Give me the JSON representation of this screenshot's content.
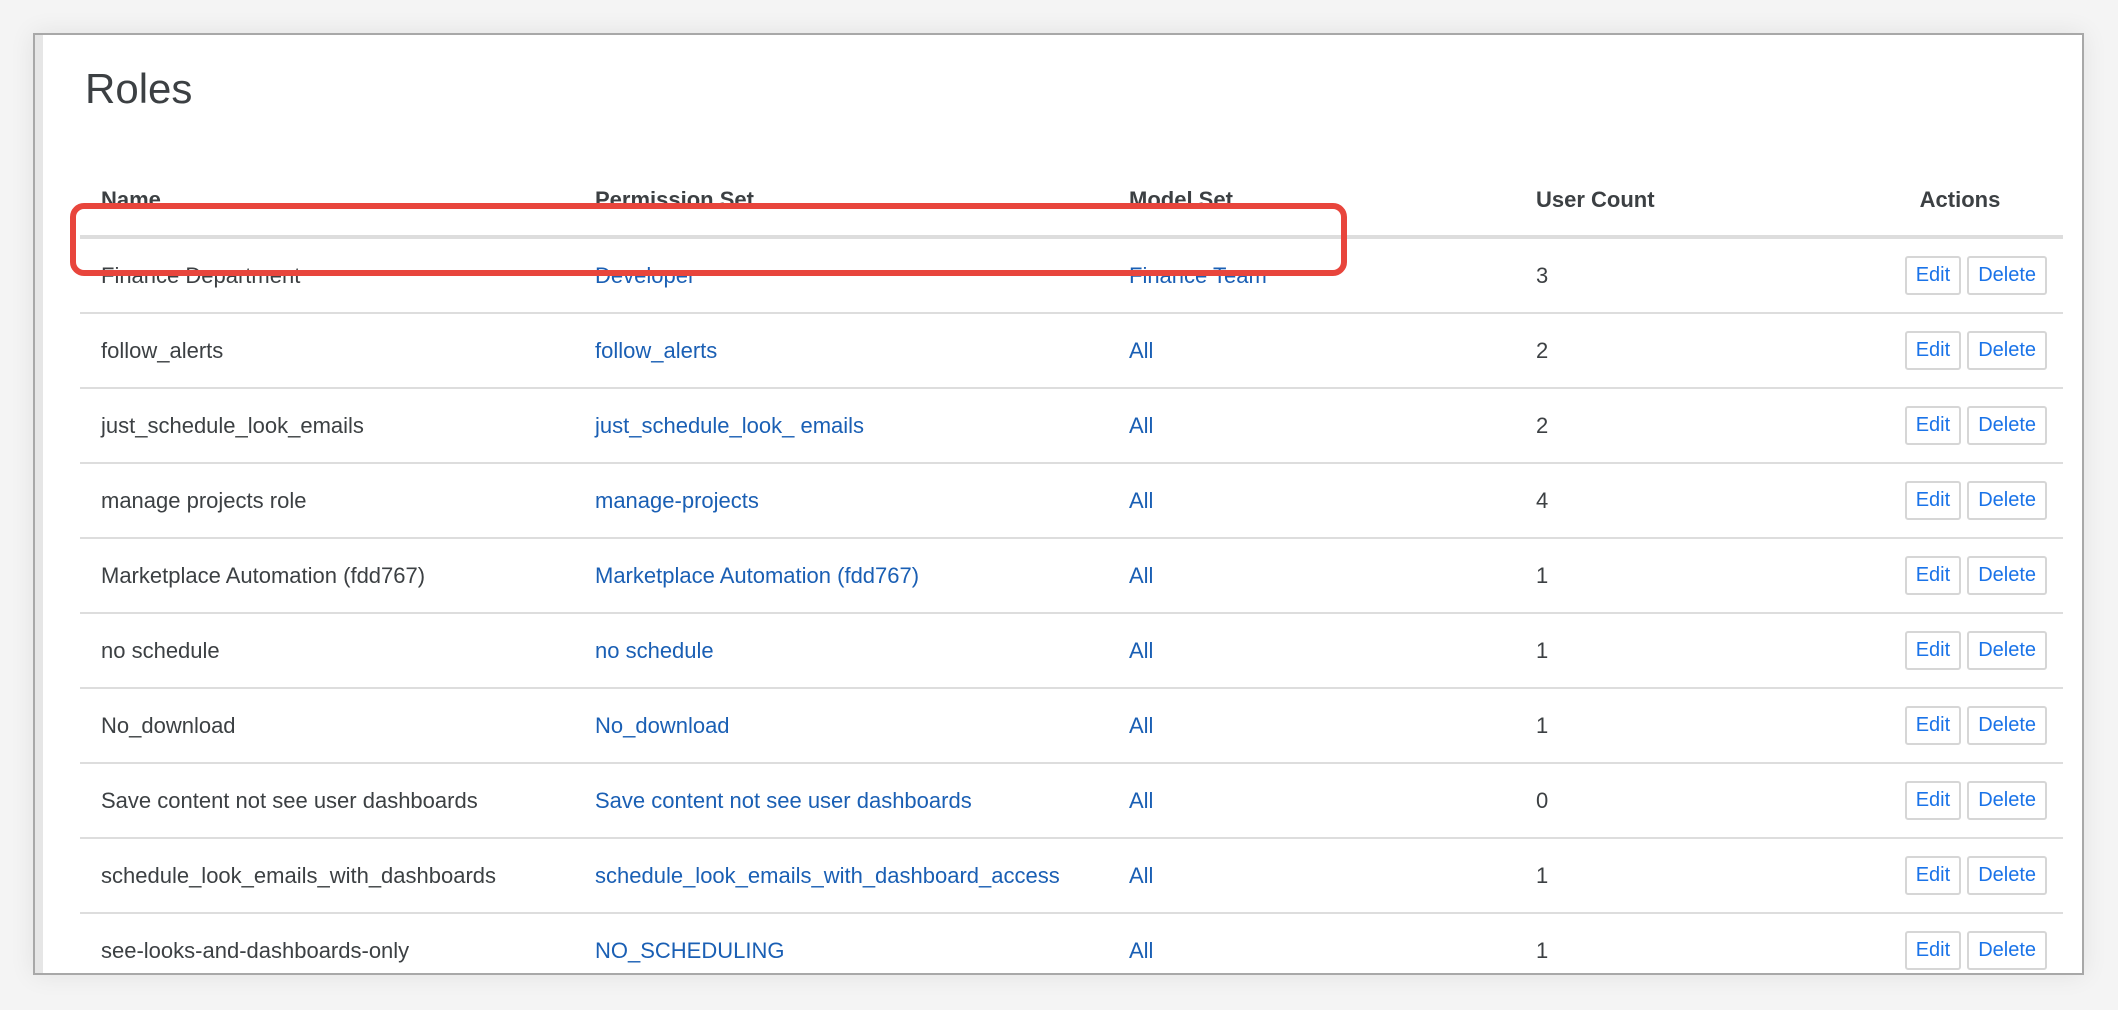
{
  "title": "Roles",
  "columns": [
    "Name",
    "Permission Set",
    "Model Set",
    "User Count",
    "Actions"
  ],
  "actions": {
    "edit": "Edit",
    "delete": "Delete"
  },
  "highlight_color": "#e8453c",
  "rows": [
    {
      "name": "Finance Department",
      "permission_set": "Developer",
      "model_set": "Finance Team",
      "user_count": "3"
    },
    {
      "name": "follow_alerts",
      "permission_set": "follow_alerts",
      "model_set": "All",
      "user_count": "2"
    },
    {
      "name": "just_schedule_look_emails",
      "permission_set": "just_schedule_look_ emails",
      "model_set": "All",
      "user_count": "2"
    },
    {
      "name": "manage projects role",
      "permission_set": "manage-projects",
      "model_set": "All",
      "user_count": "4"
    },
    {
      "name": "Marketplace Automation (fdd767)",
      "permission_set": "Marketplace Automation (fdd767)",
      "model_set": "All",
      "user_count": "1"
    },
    {
      "name": "no schedule",
      "permission_set": "no schedule",
      "model_set": "All",
      "user_count": "1"
    },
    {
      "name": "No_download",
      "permission_set": "No_download",
      "model_set": "All",
      "user_count": "1"
    },
    {
      "name": "Save content not see user dashboards",
      "permission_set": "Save content not see user dashboards",
      "model_set": "All",
      "user_count": "0"
    },
    {
      "name": "schedule_look_emails_with_dashboards",
      "permission_set": "schedule_look_emails_with_dashboard_access",
      "model_set": "All",
      "user_count": "1"
    },
    {
      "name": "see-looks-and-dashboards-only",
      "permission_set": "NO_SCHEDULING",
      "model_set": "All",
      "user_count": "1"
    }
  ]
}
